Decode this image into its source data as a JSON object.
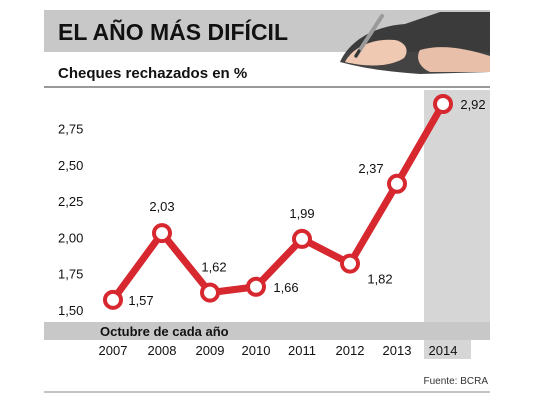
{
  "header": {
    "title": "EL AÑO MÁS DIFÍCIL"
  },
  "chart_data": {
    "type": "line",
    "subtitle": "Cheques rechazados en %",
    "categories": [
      "2007",
      "2008",
      "2009",
      "2010",
      "2011",
      "2012",
      "2013",
      "2014"
    ],
    "values": [
      1.57,
      2.03,
      1.62,
      1.66,
      1.99,
      1.82,
      2.37,
      2.92
    ],
    "value_labels": [
      "1,57",
      "2,03",
      "1,62",
      "1,66",
      "1,99",
      "1,82",
      "2,37",
      "2,92"
    ],
    "y_ticks": [
      {
        "value": 1.5,
        "label": "1,50"
      },
      {
        "value": 1.75,
        "label": "1,75"
      },
      {
        "value": 2.0,
        "label": "2,00"
      },
      {
        "value": 2.25,
        "label": "2,25"
      },
      {
        "value": 2.5,
        "label": "2,50"
      },
      {
        "value": 2.75,
        "label": "2,75"
      }
    ],
    "ylim": [
      1.5,
      3.0
    ],
    "xlabel": "Octubre de cada año",
    "highlight_category": "2014",
    "source": "Fuente: BCRA",
    "line_color": "#d7282f",
    "grid": false
  }
}
